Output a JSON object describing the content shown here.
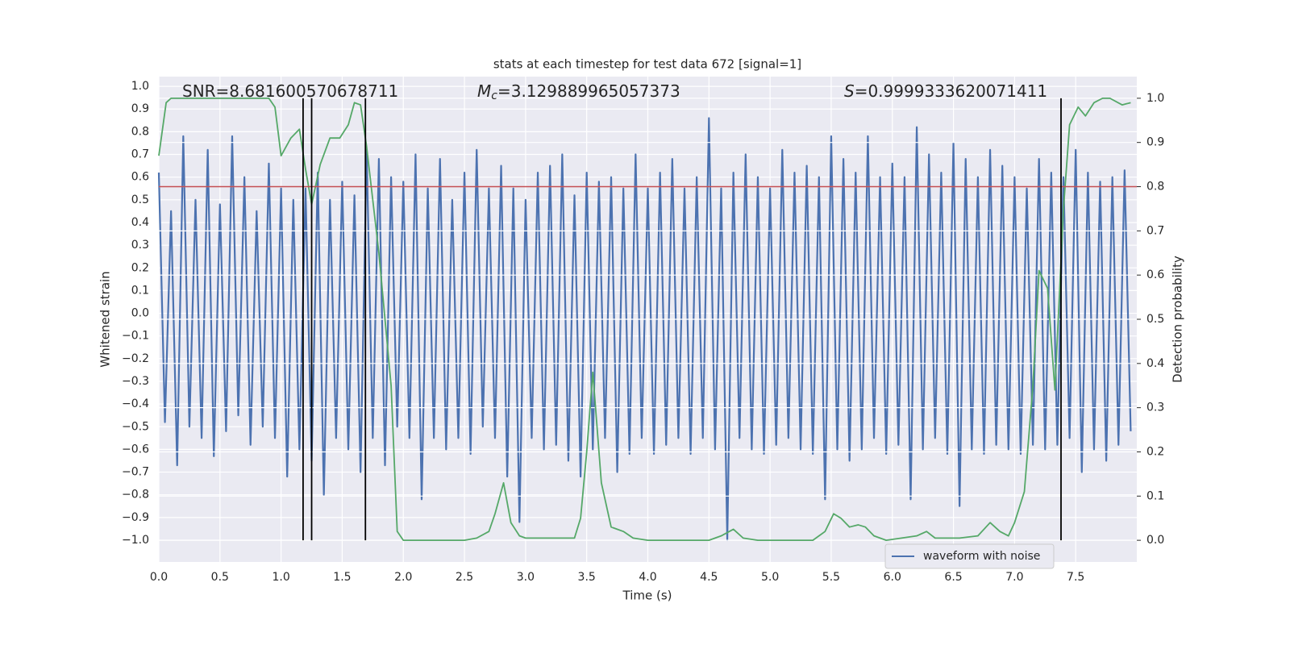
{
  "chart_data": {
    "type": "line",
    "title": "stats at each timestep for test data 672 [signal=1]",
    "xlabel": "Time (s)",
    "ylabel": "Whitened strain",
    "y2label": "Detection probability",
    "xlim": [
      0,
      8.0
    ],
    "ylim": [
      -1.096,
      1.043
    ],
    "y2lim": [
      -0.049,
      1.049
    ],
    "xticks": [
      {
        "value": 0,
        "label": "0.0"
      },
      {
        "value": 0.5,
        "label": "0.5"
      },
      {
        "value": 1,
        "label": "1.0"
      },
      {
        "value": 1.5,
        "label": "1.5"
      },
      {
        "value": 2,
        "label": "2.0"
      },
      {
        "value": 2.5,
        "label": "2.5"
      },
      {
        "value": 3,
        "label": "3.0"
      },
      {
        "value": 3.5,
        "label": "3.5"
      },
      {
        "value": 4,
        "label": "4.0"
      },
      {
        "value": 4.5,
        "label": "4.5"
      },
      {
        "value": 5,
        "label": "5.0"
      },
      {
        "value": 5.5,
        "label": "5.5"
      },
      {
        "value": 6,
        "label": "6.0"
      },
      {
        "value": 6.5,
        "label": "6.5"
      },
      {
        "value": 7,
        "label": "7.0"
      },
      {
        "value": 7.5,
        "label": "7.5"
      }
    ],
    "yticks": [
      {
        "value": -1,
        "label": "−1.0"
      },
      {
        "value": -0.9,
        "label": "−0.9"
      },
      {
        "value": -0.8,
        "label": "−0.8"
      },
      {
        "value": -0.7,
        "label": "−0.7"
      },
      {
        "value": -0.6,
        "label": "−0.6"
      },
      {
        "value": -0.5,
        "label": "−0.5"
      },
      {
        "value": -0.4,
        "label": "−0.4"
      },
      {
        "value": -0.3,
        "label": "−0.3"
      },
      {
        "value": -0.2,
        "label": "−0.2"
      },
      {
        "value": -0.1,
        "label": "−0.1"
      },
      {
        "value": 0,
        "label": "0.0"
      },
      {
        "value": 0.1,
        "label": "0.1"
      },
      {
        "value": 0.2,
        "label": "0.2"
      },
      {
        "value": 0.3,
        "label": "0.3"
      },
      {
        "value": 0.4,
        "label": "0.4"
      },
      {
        "value": 0.5,
        "label": "0.5"
      },
      {
        "value": 0.6,
        "label": "0.6"
      },
      {
        "value": 0.7,
        "label": "0.7"
      },
      {
        "value": 0.8,
        "label": "0.8"
      },
      {
        "value": 0.9,
        "label": "0.9"
      },
      {
        "value": 1,
        "label": "1.0"
      }
    ],
    "y2ticks": [
      {
        "value": 0,
        "label": "0.0"
      },
      {
        "value": 0.1,
        "label": "0.1"
      },
      {
        "value": 0.2,
        "label": "0.2"
      },
      {
        "value": 0.3,
        "label": "0.3"
      },
      {
        "value": 0.4,
        "label": "0.4"
      },
      {
        "value": 0.5,
        "label": "0.5"
      },
      {
        "value": 0.6,
        "label": "0.6"
      },
      {
        "value": 0.7,
        "label": "0.7"
      },
      {
        "value": 0.8,
        "label": "0.8"
      },
      {
        "value": 0.9,
        "label": "0.9"
      },
      {
        "value": 1,
        "label": "1.0"
      }
    ],
    "grid": true,
    "legend": "lower right",
    "series": [
      {
        "name": "waveform with noise",
        "color": "#4c72b0",
        "x": [
          0,
          0.05,
          0.1,
          0.15,
          0.2,
          0.25,
          0.3,
          0.35,
          0.4,
          0.45,
          0.5,
          0.55,
          0.6,
          0.65,
          0.7,
          0.75,
          0.8,
          0.85,
          0.9,
          0.95,
          1,
          1.05,
          1.1,
          1.15,
          1.2,
          1.25,
          1.3,
          1.35,
          1.4,
          1.45,
          1.5,
          1.55,
          1.6,
          1.65,
          1.7,
          1.75,
          1.8,
          1.85,
          1.9,
          1.95,
          2,
          2.05,
          2.1,
          2.15,
          2.2,
          2.25,
          2.3,
          2.35,
          2.4,
          2.45,
          2.5,
          2.55,
          2.6,
          2.65,
          2.7,
          2.75,
          2.8,
          2.85,
          2.9,
          2.95,
          3,
          3.05,
          3.1,
          3.15,
          3.2,
          3.25,
          3.3,
          3.35,
          3.4,
          3.45,
          3.5,
          3.55,
          3.6,
          3.65,
          3.7,
          3.75,
          3.8,
          3.85,
          3.9,
          3.95,
          4,
          4.05,
          4.1,
          4.15,
          4.2,
          4.25,
          4.3,
          4.35,
          4.4,
          4.45,
          4.5,
          4.55,
          4.6,
          4.65,
          4.7,
          4.75,
          4.8,
          4.85,
          4.9,
          4.95,
          5,
          5.05,
          5.1,
          5.15,
          5.2,
          5.25,
          5.3,
          5.35,
          5.4,
          5.45,
          5.5,
          5.55,
          5.6,
          5.65,
          5.7,
          5.75,
          5.8,
          5.85,
          5.9,
          5.95,
          6,
          6.05,
          6.1,
          6.15,
          6.2,
          6.25,
          6.3,
          6.35,
          6.4,
          6.45,
          6.5,
          6.55,
          6.6,
          6.65,
          6.7,
          6.75,
          6.8,
          6.85,
          6.9,
          6.95,
          7,
          7.05,
          7.1,
          7.15,
          7.2,
          7.25,
          7.3,
          7.35,
          7.4,
          7.45,
          7.5,
          7.55,
          7.6,
          7.65,
          7.7,
          7.75,
          7.8,
          7.85,
          7.9,
          7.95
        ],
        "values": [
          0.62,
          -0.48,
          0.45,
          -0.67,
          0.78,
          -0.5,
          0.5,
          -0.55,
          0.72,
          -0.63,
          0.48,
          -0.52,
          0.78,
          -0.45,
          0.6,
          -0.58,
          0.45,
          -0.5,
          0.66,
          -0.55,
          0.55,
          -0.72,
          0.5,
          -0.6,
          0.55,
          -0.65,
          0.62,
          -0.8,
          0.5,
          -0.55,
          0.58,
          -0.6,
          0.52,
          -0.7,
          0.72,
          -0.55,
          0.68,
          -0.67,
          0.6,
          -0.5,
          0.58,
          -0.55,
          0.7,
          -0.82,
          0.55,
          -0.55,
          0.68,
          -0.6,
          0.5,
          -0.55,
          0.62,
          -0.62,
          0.72,
          -0.5,
          0.55,
          -0.55,
          0.65,
          -0.72,
          0.55,
          -0.92,
          0.5,
          -0.55,
          0.62,
          -0.6,
          0.65,
          -0.58,
          0.7,
          -0.65,
          0.52,
          -0.72,
          0.62,
          -0.6,
          0.58,
          -0.55,
          0.6,
          -0.7,
          0.55,
          -0.62,
          0.7,
          -0.55,
          0.55,
          -0.62,
          0.62,
          -0.58,
          0.68,
          -0.55,
          0.55,
          -0.62,
          0.6,
          -0.55,
          0.86,
          -0.6,
          0.55,
          -1.0,
          0.62,
          -0.55,
          0.7,
          -0.6,
          0.6,
          -0.62,
          0.55,
          -0.58,
          0.72,
          -0.55,
          0.62,
          -0.6,
          0.65,
          -0.62,
          0.6,
          -0.82,
          0.78,
          -0.6,
          0.68,
          -0.65,
          0.62,
          -0.6,
          0.78,
          -0.55,
          0.6,
          -0.62,
          0.66,
          -0.58,
          0.6,
          -0.82,
          0.82,
          -0.6,
          0.7,
          -0.55,
          0.62,
          -0.62,
          0.75,
          -0.85,
          0.68,
          -0.6,
          0.6,
          -0.62,
          0.72,
          -0.58,
          0.65,
          -0.6,
          0.6,
          -0.62,
          0.55,
          -0.58,
          0.68,
          -0.6,
          0.62,
          -0.58,
          0.6,
          -0.55,
          0.72,
          -0.7,
          0.62,
          -0.6,
          0.58,
          -0.65,
          0.6,
          -0.58,
          0.63,
          -0.52
        ]
      },
      {
        "color": "#55a868",
        "axis": "y2",
        "x": [
          0,
          0.06,
          0.1,
          0.5,
          0.9,
          0.95,
          1.0,
          1.08,
          1.15,
          1.2,
          1.25,
          1.32,
          1.4,
          1.48,
          1.55,
          1.6,
          1.65,
          1.7,
          1.8,
          1.9,
          1.95,
          2.0,
          2.5,
          2.6,
          2.7,
          2.75,
          2.82,
          2.88,
          2.95,
          3.0,
          3.4,
          3.45,
          3.5,
          3.55,
          3.62,
          3.7,
          3.8,
          3.88,
          4.0,
          4.5,
          4.6,
          4.7,
          4.78,
          4.9,
          5.35,
          5.45,
          5.52,
          5.58,
          5.65,
          5.72,
          5.78,
          5.85,
          5.95,
          6.2,
          6.28,
          6.35,
          6.55,
          6.7,
          6.8,
          6.88,
          6.95,
          7.0,
          7.08,
          7.15,
          7.2,
          7.27,
          7.33,
          7.4,
          7.45,
          7.52,
          7.58,
          7.65,
          7.72,
          7.78,
          7.88,
          7.95
        ],
        "values": [
          0.87,
          0.99,
          1.0,
          1.0,
          1.0,
          0.98,
          0.87,
          0.91,
          0.93,
          0.84,
          0.76,
          0.85,
          0.91,
          0.91,
          0.94,
          0.99,
          0.985,
          0.89,
          0.65,
          0.35,
          0.02,
          0.0,
          0.0,
          0.005,
          0.02,
          0.06,
          0.13,
          0.04,
          0.01,
          0.005,
          0.005,
          0.05,
          0.2,
          0.38,
          0.13,
          0.03,
          0.02,
          0.005,
          0.0,
          0.0,
          0.01,
          0.025,
          0.005,
          0.0,
          0.0,
          0.02,
          0.06,
          0.05,
          0.03,
          0.035,
          0.03,
          0.01,
          0.0,
          0.01,
          0.02,
          0.005,
          0.005,
          0.01,
          0.04,
          0.02,
          0.01,
          0.04,
          0.11,
          0.35,
          0.61,
          0.57,
          0.34,
          0.75,
          0.94,
          0.98,
          0.96,
          0.99,
          1.0,
          1.0,
          0.985,
          0.99
        ]
      }
    ],
    "hlines": [
      {
        "value": 0.8,
        "axis": "y2",
        "color": "#c44e52"
      }
    ],
    "vlines": {
      "x": [
        1.18,
        1.25,
        1.69,
        7.38
      ],
      "span": [
        0,
        1
      ],
      "axis": "y2",
      "color": "#000000"
    },
    "annotations": [
      {
        "text": "SNR=8.681600570678711"
      },
      {
        "symbol": "M",
        "subscript": "c",
        "text": "=3.129889965057373"
      },
      {
        "symbol": "S",
        "text": "=0.9999333620071411"
      }
    ]
  }
}
